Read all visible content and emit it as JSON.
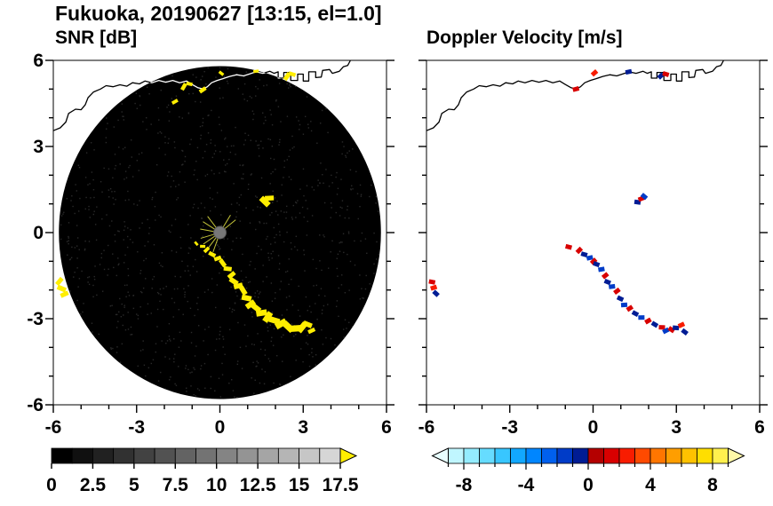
{
  "header": {
    "title": "Fukuoka, 20190627 [13:15, el=1.0]"
  },
  "chart_data": [
    {
      "type": "scatter",
      "title": "SNR [dB]",
      "xlabel": "",
      "ylabel": "",
      "xlim": [
        -6,
        6
      ],
      "ylim": [
        -6,
        6
      ],
      "xticks": [
        -6,
        -3,
        0,
        3,
        6
      ],
      "yticks": [
        -6,
        -3,
        0,
        3,
        6
      ],
      "minor_tick_step": 1,
      "disk": {
        "cx": 0,
        "cy": 0,
        "r": 5.8,
        "color": "#000000"
      },
      "center_marker": {
        "x": 0,
        "y": 0,
        "color": "#787878"
      },
      "spokes": {
        "color": "#c6c63a",
        "angles_deg": [
          128,
          148,
          170,
          196,
          214,
          232,
          250,
          38,
          58
        ],
        "r_inner": 0.12,
        "r_outer": 0.72
      },
      "coastline_color": "#ffffff",
      "echo_color": "#ffee00",
      "echoes": [
        [
          -1.3,
          5.08,
          0.8
        ],
        [
          -1.1,
          5.18,
          0.7
        ],
        [
          -0.62,
          4.97,
          0.8
        ],
        [
          0.05,
          5.55,
          0.6
        ],
        [
          1.3,
          5.62,
          0.6
        ],
        [
          2.42,
          5.44,
          0.9
        ],
        [
          2.6,
          5.52,
          0.8
        ],
        [
          -1.62,
          4.56,
          0.7
        ],
        [
          1.62,
          1.08,
          1.2
        ],
        [
          1.78,
          1.2,
          1.0
        ],
        [
          -5.78,
          -1.7,
          0.9
        ],
        [
          -5.7,
          -1.95,
          1.0
        ],
        [
          -5.6,
          -2.15,
          0.9
        ],
        [
          -0.85,
          -0.38,
          0.5
        ],
        [
          -0.62,
          -0.48,
          0.6
        ],
        [
          -0.48,
          -0.6,
          0.7
        ],
        [
          -0.28,
          -0.76,
          0.8
        ],
        [
          -0.08,
          -0.9,
          0.8
        ],
        [
          0.1,
          -1.06,
          0.9
        ],
        [
          0.28,
          -1.26,
          0.9
        ],
        [
          0.42,
          -1.48,
          0.9
        ],
        [
          0.5,
          -1.7,
          1.0
        ],
        [
          0.66,
          -1.86,
          1.0
        ],
        [
          0.84,
          -2.02,
          1.0
        ],
        [
          0.96,
          -2.28,
          1.1
        ],
        [
          1.1,
          -2.5,
          1.1
        ],
        [
          1.3,
          -2.62,
          1.1
        ],
        [
          1.5,
          -2.8,
          1.2
        ],
        [
          1.72,
          -2.94,
          1.2
        ],
        [
          1.96,
          -3.06,
          1.2
        ],
        [
          2.2,
          -3.18,
          1.3
        ],
        [
          2.46,
          -3.28,
          1.3
        ],
        [
          2.72,
          -3.34,
          1.3
        ],
        [
          2.96,
          -3.3,
          1.2
        ],
        [
          3.16,
          -3.2,
          1.0
        ],
        [
          3.3,
          -3.42,
          0.8
        ]
      ],
      "colorbar": {
        "min": 0,
        "max": 17.5,
        "cell_step": 1.25,
        "ticks": [
          0,
          2.5,
          5,
          7.5,
          10,
          12.5,
          15,
          17.5
        ],
        "start_color": "#000000",
        "end_color": "#d6d6d6",
        "over_arrow_color": "#ffee00"
      }
    },
    {
      "type": "scatter",
      "title": "Doppler Velocity [m/s]",
      "xlabel": "",
      "ylabel": "",
      "xlim": [
        -6,
        6
      ],
      "ylim": [
        -6,
        6
      ],
      "xticks": [
        -6,
        -3,
        0,
        3,
        6
      ],
      "yticks": [
        -6,
        -3,
        0,
        3,
        6
      ],
      "minor_tick_step": 1,
      "coastline_color": "#000000",
      "echoes": [
        [
          -0.5,
          -0.62,
          1
        ],
        [
          -0.32,
          -0.76,
          -1
        ],
        [
          -0.12,
          -0.88,
          -2
        ],
        [
          0.02,
          -1.0,
          1
        ],
        [
          0.12,
          -1.1,
          -1
        ],
        [
          0.3,
          -1.28,
          -2
        ],
        [
          0.44,
          -1.5,
          1
        ],
        [
          0.52,
          -1.72,
          -1
        ],
        [
          0.68,
          -1.88,
          -2
        ],
        [
          0.86,
          -2.04,
          1
        ],
        [
          0.98,
          -2.3,
          -1
        ],
        [
          1.12,
          -2.52,
          -2
        ],
        [
          1.32,
          -2.64,
          1
        ],
        [
          1.52,
          -2.82,
          -1
        ],
        [
          1.74,
          -2.96,
          -2
        ],
        [
          1.98,
          -3.08,
          1
        ],
        [
          2.22,
          -3.2,
          -1
        ],
        [
          2.48,
          -3.3,
          1
        ],
        [
          2.62,
          -3.42,
          -2
        ],
        [
          2.82,
          -3.38,
          1
        ],
        [
          2.98,
          -3.32,
          -1
        ],
        [
          3.18,
          -3.22,
          2
        ],
        [
          3.3,
          -3.46,
          -1
        ],
        [
          1.6,
          1.06,
          -1
        ],
        [
          1.74,
          1.18,
          1
        ],
        [
          1.84,
          1.26,
          -2
        ],
        [
          -5.8,
          -1.72,
          1
        ],
        [
          -5.74,
          -1.92,
          2
        ],
        [
          -5.66,
          -2.12,
          -1
        ],
        [
          -0.88,
          -0.5,
          1
        ],
        [
          -0.62,
          5.0,
          1
        ],
        [
          2.44,
          5.46,
          -1
        ],
        [
          2.62,
          5.52,
          1
        ],
        [
          1.28,
          5.6,
          -1
        ],
        [
          0.05,
          5.56,
          2
        ]
      ],
      "colormap": {
        "vmin": -10,
        "vmax": 10,
        "colors": [
          "#e8ffff",
          "#c0f6ff",
          "#94ecff",
          "#66dcff",
          "#38c6ff",
          "#12a8ff",
          "#0086ff",
          "#0060ee",
          "#003cc8",
          "#001c94",
          "#b40000",
          "#d80000",
          "#f81c00",
          "#ff4a00",
          "#ff7600",
          "#ff9e00",
          "#ffc200",
          "#ffde00",
          "#fff04e",
          "#fff9a8"
        ]
      },
      "colorbar": {
        "min": -9,
        "max": 9,
        "cell_step": 1,
        "ticks": [
          -8,
          -4,
          0,
          4,
          8
        ],
        "minor_step": 1,
        "under_arrow_color": "#e8ffff",
        "over_arrow_color": "#fff9a8"
      }
    }
  ],
  "coastline": [
    [
      -6.0,
      3.55
    ],
    [
      -5.75,
      3.65
    ],
    [
      -5.55,
      3.85
    ],
    [
      -5.45,
      4.15
    ],
    [
      -5.2,
      4.3
    ],
    [
      -5.0,
      4.28
    ],
    [
      -4.85,
      4.45
    ],
    [
      -4.75,
      4.7
    ],
    [
      -4.55,
      4.9
    ],
    [
      -4.3,
      5.0
    ],
    [
      -4.1,
      5.12
    ],
    [
      -3.85,
      5.08
    ],
    [
      -3.6,
      5.15
    ],
    [
      -3.35,
      5.1
    ],
    [
      -3.15,
      5.22
    ],
    [
      -2.9,
      5.18
    ],
    [
      -2.7,
      5.28
    ],
    [
      -2.45,
      5.22
    ],
    [
      -2.2,
      5.3
    ],
    [
      -1.95,
      5.24
    ],
    [
      -1.7,
      5.3
    ],
    [
      -1.45,
      5.22
    ],
    [
      -1.2,
      5.28
    ],
    [
      -1.0,
      5.16
    ],
    [
      -0.8,
      5.05
    ],
    [
      -0.6,
      5.0
    ],
    [
      -0.45,
      5.08
    ],
    [
      -0.3,
      5.22
    ],
    [
      -0.1,
      5.3
    ],
    [
      0.1,
      5.36
    ],
    [
      0.35,
      5.44
    ],
    [
      0.6,
      5.5
    ],
    [
      0.85,
      5.46
    ],
    [
      1.05,
      5.52
    ],
    [
      1.3,
      5.6
    ],
    [
      1.55,
      5.55
    ],
    [
      1.8,
      5.62
    ],
    [
      1.95,
      5.55
    ],
    [
      2.1,
      5.6
    ],
    [
      2.1,
      5.38
    ],
    [
      2.3,
      5.38
    ],
    [
      2.3,
      5.58
    ],
    [
      2.55,
      5.58
    ],
    [
      2.55,
      5.3
    ],
    [
      2.8,
      5.3
    ],
    [
      2.8,
      5.52
    ],
    [
      3.0,
      5.52
    ],
    [
      3.0,
      5.28
    ],
    [
      3.2,
      5.28
    ],
    [
      3.2,
      5.6
    ],
    [
      3.45,
      5.6
    ],
    [
      3.45,
      5.4
    ],
    [
      3.65,
      5.42
    ],
    [
      3.7,
      5.65
    ],
    [
      3.95,
      5.68
    ],
    [
      4.05,
      5.55
    ],
    [
      4.3,
      5.62
    ],
    [
      4.45,
      5.78
    ],
    [
      4.6,
      5.82
    ],
    [
      4.7,
      6.0
    ]
  ]
}
